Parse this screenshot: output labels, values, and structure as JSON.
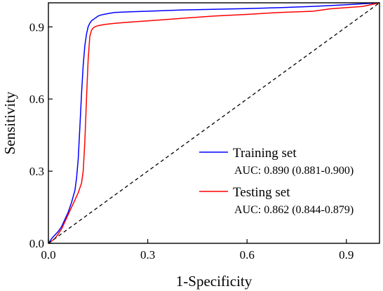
{
  "chart_data": {
    "type": "line",
    "title": "",
    "xlabel": "1-Specificity",
    "ylabel": "Sensitivity",
    "xlim": [
      0,
      1
    ],
    "ylim": [
      0,
      1
    ],
    "xticks": [
      "0.0",
      "0.3",
      "0.6",
      "0.9"
    ],
    "yticks": [
      "0.0",
      "0.3",
      "0.6",
      "0.9"
    ],
    "grid": false,
    "legend_position": "lower-right",
    "series": [
      {
        "name": "Training set",
        "auc_label": "AUC: 0.890 (0.881-0.900)",
        "color": "#0000ff",
        "x": [
          0.0,
          0.005,
          0.01,
          0.02,
          0.03,
          0.04,
          0.05,
          0.06,
          0.07,
          0.08,
          0.085,
          0.09,
          0.095,
          0.1,
          0.105,
          0.11,
          0.115,
          0.12,
          0.125,
          0.13,
          0.14,
          0.15,
          0.16,
          0.18,
          0.2,
          0.25,
          0.3,
          0.4,
          0.5,
          0.6,
          0.7,
          0.8,
          0.9,
          0.95,
          1.0
        ],
        "y": [
          0.0,
          0.01,
          0.02,
          0.035,
          0.05,
          0.07,
          0.1,
          0.13,
          0.17,
          0.22,
          0.27,
          0.35,
          0.48,
          0.62,
          0.74,
          0.82,
          0.87,
          0.9,
          0.915,
          0.925,
          0.935,
          0.945,
          0.95,
          0.955,
          0.96,
          0.963,
          0.965,
          0.97,
          0.973,
          0.976,
          0.98,
          0.985,
          0.992,
          0.996,
          1.0
        ]
      },
      {
        "name": "Testing set",
        "auc_label": "AUC: 0.862 (0.844-0.879)",
        "color": "#ff0000",
        "x": [
          0.0,
          0.01,
          0.02,
          0.03,
          0.04,
          0.05,
          0.06,
          0.07,
          0.08,
          0.09,
          0.095,
          0.1,
          0.105,
          0.11,
          0.115,
          0.12,
          0.125,
          0.13,
          0.135,
          0.14,
          0.15,
          0.17,
          0.2,
          0.25,
          0.3,
          0.4,
          0.5,
          0.6,
          0.7,
          0.8,
          0.85,
          0.9,
          0.95,
          1.0
        ],
        "y": [
          0.0,
          0.01,
          0.02,
          0.04,
          0.06,
          0.09,
          0.12,
          0.15,
          0.18,
          0.21,
          0.23,
          0.25,
          0.3,
          0.42,
          0.6,
          0.76,
          0.86,
          0.885,
          0.895,
          0.9,
          0.905,
          0.91,
          0.915,
          0.92,
          0.925,
          0.935,
          0.945,
          0.952,
          0.96,
          0.965,
          0.975,
          0.98,
          0.985,
          1.0
        ]
      },
      {
        "name": "",
        "style": "dashed",
        "color": "#000000",
        "x": [
          0,
          1
        ],
        "y": [
          0,
          1
        ]
      }
    ]
  }
}
